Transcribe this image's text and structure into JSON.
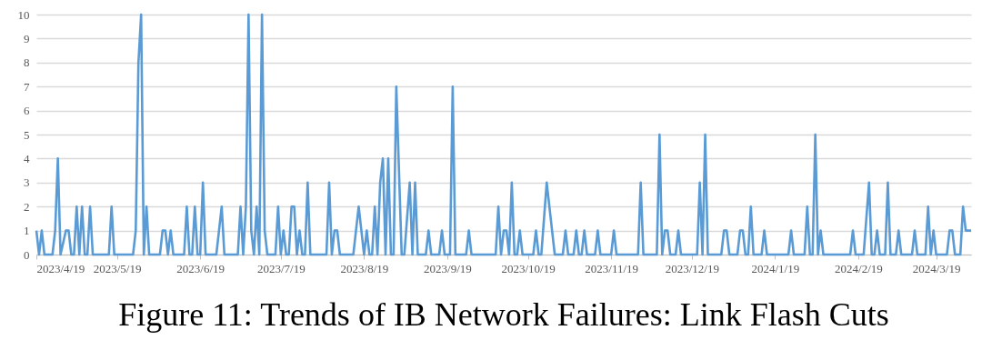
{
  "chart_data": {
    "type": "line",
    "title": "Figure 11: Trends of IB Network Failures: Link Flash Cuts",
    "x": [
      "2023-04-19",
      "2023-04-20",
      "2023-04-21",
      "2023-04-22",
      "2023-04-25",
      "2023-04-26",
      "2023-04-27",
      "2023-04-28",
      "2023-04-30",
      "2023-05-01",
      "2023-05-02",
      "2023-05-03",
      "2023-05-04",
      "2023-05-05",
      "2023-05-06",
      "2023-05-07",
      "2023-05-08",
      "2023-05-09",
      "2023-05-10",
      "2023-05-16",
      "2023-05-17",
      "2023-05-18",
      "2023-05-25",
      "2023-05-26",
      "2023-05-27",
      "2023-05-28",
      "2023-05-29",
      "2023-05-30",
      "2023-05-31",
      "2023-06-04",
      "2023-06-05",
      "2023-06-06",
      "2023-06-07",
      "2023-06-08",
      "2023-06-09",
      "2023-06-13",
      "2023-06-14",
      "2023-06-15",
      "2023-06-16",
      "2023-06-17",
      "2023-06-18",
      "2023-06-19",
      "2023-06-20",
      "2023-06-21",
      "2023-06-25",
      "2023-06-27",
      "2023-06-28",
      "2023-07-03",
      "2023-07-04",
      "2023-07-05",
      "2023-07-06",
      "2023-07-07",
      "2023-07-08",
      "2023-07-09",
      "2023-07-10",
      "2023-07-11",
      "2023-07-12",
      "2023-07-13",
      "2023-07-14",
      "2023-07-17",
      "2023-07-18",
      "2023-07-19",
      "2023-07-20",
      "2023-07-21",
      "2023-07-22",
      "2023-07-23",
      "2023-07-24",
      "2023-07-25",
      "2023-07-26",
      "2023-07-27",
      "2023-07-28",
      "2023-07-29",
      "2023-07-30",
      "2023-08-05",
      "2023-08-06",
      "2023-08-07",
      "2023-08-08",
      "2023-08-09",
      "2023-08-10",
      "2023-08-15",
      "2023-08-17",
      "2023-08-19",
      "2023-08-20",
      "2023-08-21",
      "2023-08-22",
      "2023-08-23",
      "2023-08-24",
      "2023-08-25",
      "2023-08-26",
      "2023-08-27",
      "2023-08-28",
      "2023-08-29",
      "2023-08-30",
      "2023-08-31",
      "2023-09-02",
      "2023-09-03",
      "2023-09-05",
      "2023-09-06",
      "2023-09-07",
      "2023-09-08",
      "2023-09-11",
      "2023-09-12",
      "2023-09-13",
      "2023-09-16",
      "2023-09-17",
      "2023-09-18",
      "2023-09-20",
      "2023-09-21",
      "2023-09-22",
      "2023-09-26",
      "2023-09-27",
      "2023-09-28",
      "2023-10-07",
      "2023-10-08",
      "2023-10-09",
      "2023-10-10",
      "2023-10-11",
      "2023-10-12",
      "2023-10-13",
      "2023-10-14",
      "2023-10-15",
      "2023-10-16",
      "2023-10-17",
      "2023-10-21",
      "2023-10-22",
      "2023-10-23",
      "2023-10-24",
      "2023-10-26",
      "2023-10-29",
      "2023-11-01",
      "2023-11-02",
      "2023-11-03",
      "2023-11-05",
      "2023-11-06",
      "2023-11-07",
      "2023-11-08",
      "2023-11-09",
      "2023-11-10",
      "2023-11-13",
      "2023-11-14",
      "2023-11-15",
      "2023-11-19",
      "2023-11-20",
      "2023-11-21",
      "2023-11-29",
      "2023-11-30",
      "2023-12-01",
      "2023-12-06",
      "2023-12-07",
      "2023-12-08",
      "2023-12-09",
      "2023-12-10",
      "2023-12-11",
      "2023-12-13",
      "2023-12-14",
      "2023-12-15",
      "2023-12-21",
      "2023-12-22",
      "2023-12-23",
      "2023-12-24",
      "2023-12-25",
      "2023-12-30",
      "2023-12-31",
      "2024-01-01",
      "2024-01-02",
      "2024-01-05",
      "2024-01-06",
      "2024-01-07",
      "2024-01-08",
      "2024-01-09",
      "2024-01-10",
      "2024-01-11",
      "2024-01-14",
      "2024-01-15",
      "2024-01-16",
      "2024-01-24",
      "2024-01-25",
      "2024-01-26",
      "2024-01-30",
      "2024-01-31",
      "2024-02-01",
      "2024-02-02",
      "2024-02-03",
      "2024-02-04",
      "2024-02-05",
      "2024-02-06",
      "2024-02-16",
      "2024-02-17",
      "2024-02-18",
      "2024-02-21",
      "2024-02-23",
      "2024-02-24",
      "2024-02-25",
      "2024-02-26",
      "2024-02-27",
      "2024-02-29",
      "2024-03-01",
      "2024-03-02",
      "2024-03-04",
      "2024-03-05",
      "2024-03-06",
      "2024-03-10",
      "2024-03-11",
      "2024-03-12",
      "2024-03-15",
      "2024-03-16",
      "2024-03-17",
      "2024-03-18",
      "2024-03-19",
      "2024-03-23",
      "2024-03-24",
      "2024-03-25",
      "2024-03-26",
      "2024-03-28",
      "2024-03-29",
      "2024-03-30",
      "2024-04-01"
    ],
    "series": [
      {
        "color": "#5b9bd5",
        "values": [
          1,
          0,
          1,
          0,
          0,
          1,
          4,
          0,
          1,
          1,
          0,
          0,
          2,
          0,
          2,
          0,
          0,
          2,
          0,
          0,
          2,
          0,
          0,
          1,
          8,
          10,
          0,
          2,
          0,
          0,
          1,
          1,
          0,
          1,
          0,
          0,
          2,
          0,
          0,
          2,
          0,
          0,
          3,
          0,
          0,
          2,
          0,
          0,
          2,
          0,
          2,
          10,
          1,
          0,
          2,
          0,
          10,
          1,
          0,
          0,
          2,
          0,
          1,
          0,
          0,
          2,
          2,
          0,
          1,
          0,
          0,
          3,
          0,
          0,
          3,
          0,
          1,
          1,
          0,
          0,
          2,
          0,
          1,
          0,
          0,
          2,
          0,
          3,
          4,
          0,
          4,
          0,
          0,
          7,
          0,
          0,
          3,
          0,
          3,
          0,
          0,
          1,
          0,
          0,
          1,
          0,
          0,
          7,
          0,
          0,
          1,
          0,
          0,
          2,
          0,
          1,
          1,
          0,
          3,
          0,
          0,
          1,
          0,
          0,
          1,
          0,
          0,
          3,
          0,
          0,
          1,
          0,
          0,
          1,
          0,
          0,
          1,
          0,
          0,
          1,
          0,
          0,
          1,
          0,
          0,
          3,
          0,
          0,
          5,
          0,
          1,
          1,
          0,
          0,
          1,
          0,
          0,
          3,
          0,
          5,
          0,
          0,
          1,
          1,
          0,
          0,
          1,
          1,
          0,
          0,
          2,
          0,
          0,
          1,
          0,
          0,
          1,
          0,
          0,
          2,
          0,
          0,
          5,
          0,
          1,
          0,
          0,
          1,
          0,
          0,
          3,
          0,
          0,
          1,
          0,
          0,
          3,
          0,
          0,
          1,
          0,
          0,
          1,
          0,
          0,
          2,
          0,
          1,
          0,
          0,
          1,
          1,
          0,
          0,
          2,
          1,
          1
        ]
      }
    ],
    "xlim": [
      "2023-04-19",
      "2024-04-01"
    ],
    "xticks": [
      {
        "value": "2023-04-19",
        "label": "2023/4/19"
      },
      {
        "value": "2023-05-19",
        "label": "2023/5/19"
      },
      {
        "value": "2023-06-19",
        "label": "2023/6/19"
      },
      {
        "value": "2023-07-19",
        "label": "2023/7/19"
      },
      {
        "value": "2023-08-19",
        "label": "2023/8/19"
      },
      {
        "value": "2023-09-19",
        "label": "2023/9/19"
      },
      {
        "value": "2023-10-19",
        "label": "2023/10/19"
      },
      {
        "value": "2023-11-19",
        "label": "2023/11/19"
      },
      {
        "value": "2023-12-19",
        "label": "2023/12/19"
      },
      {
        "value": "2024-01-19",
        "label": "2024/1/19"
      },
      {
        "value": "2024-02-19",
        "label": "2024/2/19"
      },
      {
        "value": "2024-03-19",
        "label": "2024/3/19"
      }
    ],
    "ylim": [
      0,
      10
    ],
    "yticks": [
      0,
      1,
      2,
      3,
      4,
      5,
      6,
      7,
      8,
      9,
      10
    ],
    "grid": "y"
  }
}
